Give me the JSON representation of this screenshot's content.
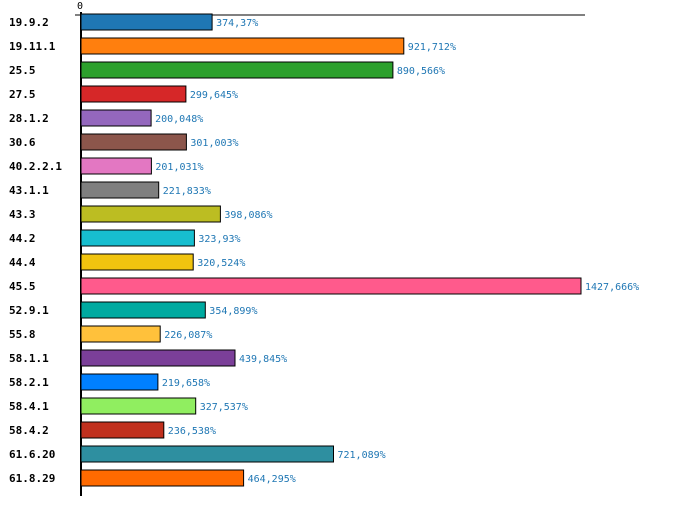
{
  "chart_data": {
    "type": "bar",
    "orientation": "horizontal",
    "title": "",
    "xlabel": "",
    "ylabel": "",
    "x_tick_labels": [
      "0"
    ],
    "xlim": [
      0,
      1450
    ],
    "value_suffix": "%",
    "decimal_separator": ",",
    "categories": [
      "19.9.2",
      "19.11.1",
      "25.5",
      "27.5",
      "28.1.2",
      "30.6",
      "40.2.2.1",
      "43.1.1",
      "43.3",
      "44.2",
      "44.4",
      "45.5",
      "52.9.1",
      "55.8",
      "58.1.1",
      "58.2.1",
      "58.4.1",
      "58.4.2",
      "61.6.20",
      "61.8.29"
    ],
    "values": [
      374.37,
      921.712,
      890.566,
      299.645,
      200.048,
      301.003,
      201.031,
      221.833,
      398.086,
      323.93,
      320.524,
      1427.666,
      354.899,
      226.087,
      439.845,
      219.658,
      327.537,
      236.538,
      721.089,
      464.295
    ],
    "labels": [
      "374,37%",
      "921,712%",
      "890,566%",
      "299,645%",
      "200,048%",
      "301,003%",
      "201,031%",
      "221,833%",
      "398,086%",
      "323,93%",
      "320,524%",
      "1427,666%",
      "354,899%",
      "226,087%",
      "439,845%",
      "219,658%",
      "327,537%",
      "236,538%",
      "721,089%",
      "464,295%"
    ],
    "colors": [
      "#1f77b4",
      "#ff7f0e",
      "#2ca02c",
      "#d62728",
      "#9467bd",
      "#8c564b",
      "#e377c2",
      "#7f7f7f",
      "#bcbd22",
      "#17becf",
      "#f1c40f",
      "#ff5a8c",
      "#00aaa0",
      "#ffc13b",
      "#7b3f99",
      "#0080ff",
      "#90ee60",
      "#c0301e",
      "#2e8fa0",
      "#ff6a00"
    ],
    "grid": false,
    "legend": "none"
  }
}
